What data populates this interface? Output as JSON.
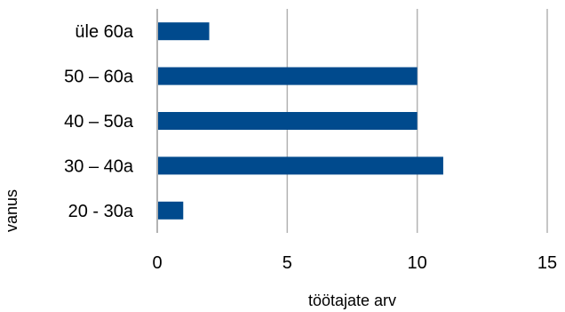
{
  "chart_data": {
    "type": "bar",
    "orientation": "horizontal",
    "categories": [
      "20 - 30a",
      "30 – 40a",
      "40 – 50a",
      "50 – 60a",
      "üle 60a"
    ],
    "values": [
      1,
      11,
      10,
      10,
      2
    ],
    "xlabel": "töötajate arv",
    "ylabel": "vanus",
    "xlim": [
      0,
      15
    ],
    "xticks": [
      "0",
      "5",
      "10",
      "15"
    ],
    "grid": true,
    "bar_color": "#004a8d",
    "grid_color": "#b3b3b3"
  }
}
